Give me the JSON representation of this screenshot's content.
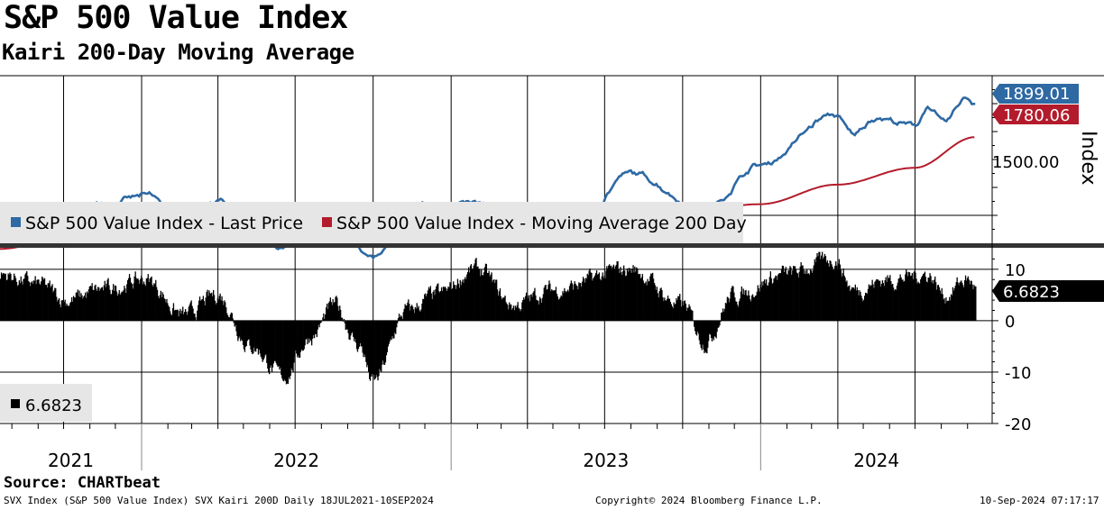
{
  "title": "S&P 500 Value Index",
  "subtitle": "Kairi 200-Day Moving Average",
  "source": "Source: CHARTbeat",
  "footer": {
    "left": "SVX Index (S&P 500 Value Index) SVX Kairi 200D  Daily 18JUL2021-10SEP2024",
    "center": "Copyright© 2024 Bloomberg Finance L.P.",
    "right": "10-Sep-2024 07:17:17"
  },
  "colors": {
    "price": "#2e69a3",
    "ma": "#b31b2c",
    "kairi": "#000000"
  },
  "chart_data": [
    {
      "type": "line",
      "title": "S&P 500 Value Index",
      "ylabel": "Index",
      "ylim": [
        1400,
        2000
      ],
      "y_ticks": [
        1500
      ],
      "y_tick_labels": [
        "1500.00"
      ],
      "x_labels": [
        "2021",
        "2022",
        "2023",
        "2024"
      ],
      "grid": true,
      "legend": "bottom-left",
      "series": [
        {
          "name": "S&P 500 Value Index - Last Price",
          "last_label": "1899.01",
          "dates": [
            "2021-07-18",
            "2021-09-01",
            "2021-10-01",
            "2021-11-15",
            "2022-01-10",
            "2022-02-15",
            "2022-03-31",
            "2022-05-20",
            "2022-06-16",
            "2022-08-16",
            "2022-09-30",
            "2022-11-30",
            "2023-02-01",
            "2023-03-15",
            "2023-05-30",
            "2023-07-31",
            "2023-10-27",
            "2023-12-31",
            "2024-03-28",
            "2024-04-19",
            "2024-05-15",
            "2024-07-01",
            "2024-07-16",
            "2024-08-05",
            "2024-08-30",
            "2024-09-10"
          ],
          "values": [
            1470,
            1510,
            1460,
            1545,
            1570,
            1480,
            1555,
            1420,
            1380,
            1530,
            1350,
            1540,
            1540,
            1460,
            1470,
            1650,
            1520,
            1680,
            1860,
            1790,
            1850,
            1820,
            1890,
            1830,
            1920,
            1899.01
          ]
        },
        {
          "name": "S&P 500 Value Index - Moving Average 200 Day",
          "last_label": "1780.06",
          "dates": [
            "2021-07-18",
            "2021-11-15",
            "2022-01-31",
            "2022-04-15",
            "2022-06-30",
            "2022-09-30",
            "2022-12-31",
            "2023-03-31",
            "2023-06-30",
            "2023-09-30",
            "2023-12-31",
            "2024-03-31",
            "2024-06-30",
            "2024-09-10"
          ],
          "values": [
            1380,
            1470,
            1505,
            1505,
            1490,
            1470,
            1445,
            1450,
            1455,
            1510,
            1540,
            1610,
            1670,
            1780.06
          ]
        }
      ]
    },
    {
      "type": "bar",
      "title": "SVX Kairi 200D",
      "ylim": [
        -20,
        14
      ],
      "y_ticks": [
        -20,
        -10,
        0,
        10
      ],
      "last_label": "6.6823",
      "legend_text": "6.6823",
      "series": [
        {
          "name": "SVX Kairi 200D",
          "dates": [
            "2021-07-18",
            "2021-09-01",
            "2021-10-05",
            "2021-11-15",
            "2022-01-05",
            "2022-02-20",
            "2022-03-31",
            "2022-05-10",
            "2022-06-16",
            "2022-07-20",
            "2022-08-16",
            "2022-09-15",
            "2022-09-30",
            "2022-11-10",
            "2022-12-15",
            "2023-01-31",
            "2023-03-15",
            "2023-04-30",
            "2023-07-31",
            "2023-09-30",
            "2023-10-27",
            "2023-11-30",
            "2024-01-31",
            "2024-03-28",
            "2024-04-19",
            "2024-05-31",
            "2024-07-16",
            "2024-08-05",
            "2024-08-30",
            "2024-09-10"
          ],
          "values": [
            9,
            7,
            4,
            6,
            8,
            1,
            5,
            -5,
            -11,
            -3,
            3,
            -5,
            -12,
            2,
            5,
            10,
            3,
            6,
            10,
            3,
            -4,
            5,
            9,
            12,
            6,
            8,
            9,
            5,
            8,
            6.6823
          ]
        }
      ]
    }
  ]
}
